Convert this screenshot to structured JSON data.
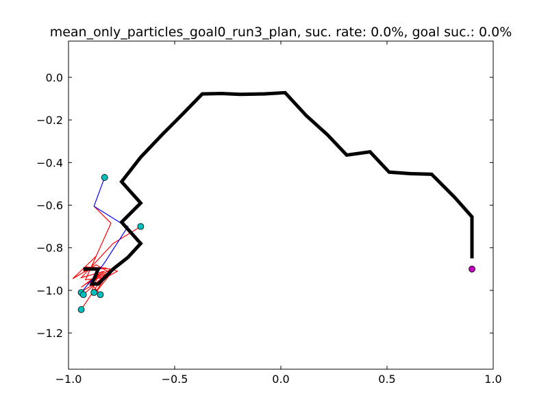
{
  "chart_data": {
    "type": "line",
    "title": "mean_only_particles_goal0_run3_plan, suc. rate: 0.0%, goal suc.: 0.0%",
    "xlabel": "",
    "ylabel": "",
    "xlim": [
      -1.0,
      1.0
    ],
    "ylim": [
      -1.37,
      0.17
    ],
    "xticks": [
      -1.0,
      -0.5,
      0.0,
      0.5,
      1.0
    ],
    "xtick_labels": [
      "−1.0",
      "−0.5",
      "0.0",
      "0.5",
      "1.0"
    ],
    "yticks": [
      0.0,
      -0.2,
      -0.4,
      -0.6,
      -0.8,
      -1.0,
      -1.2
    ],
    "ytick_labels": [
      "0.0",
      "−0.2",
      "−0.4",
      "−0.6",
      "−0.8",
      "−1.0",
      "−1.2"
    ],
    "grid": false,
    "colors": {
      "plan": "#000000",
      "mean": "#0000ff",
      "particles": "#ff0000",
      "marker": "#00bfbf",
      "goal": "#bf00bf"
    },
    "series": [
      {
        "role": "plan",
        "style": "thick-line",
        "points": [
          [
            0.9,
            -0.85
          ],
          [
            0.9,
            -0.655
          ],
          [
            0.82,
            -0.565
          ],
          [
            0.71,
            -0.455
          ],
          [
            0.61,
            -0.452
          ],
          [
            0.51,
            -0.445
          ],
          [
            0.42,
            -0.35
          ],
          [
            0.31,
            -0.365
          ],
          [
            0.22,
            -0.27
          ],
          [
            0.12,
            -0.18
          ],
          [
            0.02,
            -0.072
          ],
          [
            -0.08,
            -0.078
          ],
          [
            -0.19,
            -0.08
          ],
          [
            -0.28,
            -0.076
          ],
          [
            -0.37,
            -0.078
          ],
          [
            -0.46,
            -0.17
          ],
          [
            -0.56,
            -0.27
          ],
          [
            -0.66,
            -0.375
          ],
          [
            -0.75,
            -0.49
          ],
          [
            -0.66,
            -0.59
          ],
          [
            -0.75,
            -0.68
          ],
          [
            -0.66,
            -0.78
          ],
          [
            -0.72,
            -0.845
          ],
          [
            -0.79,
            -0.9
          ],
          [
            -0.86,
            -0.97
          ],
          [
            -0.89,
            -0.97
          ],
          [
            -0.86,
            -0.9
          ],
          [
            -0.93,
            -0.9
          ]
        ]
      },
      {
        "role": "mean",
        "style": "thin-line",
        "points": [
          [
            -0.83,
            -0.47
          ],
          [
            -0.88,
            -0.605
          ],
          [
            -0.76,
            -0.68
          ],
          [
            -0.72,
            -0.7
          ],
          [
            -0.83,
            -0.87
          ],
          [
            -0.89,
            -0.95
          ],
          [
            -0.94,
            -1.01
          ]
        ]
      },
      {
        "role": "particle",
        "style": "thin-line",
        "points": [
          [
            -0.66,
            -0.7
          ],
          [
            -0.79,
            -0.78
          ],
          [
            -0.94,
            -0.94
          ],
          [
            -0.83,
            -0.91
          ],
          [
            -0.91,
            -0.97
          ],
          [
            -0.82,
            -0.92
          ],
          [
            -0.93,
            -1.02
          ]
        ]
      },
      {
        "role": "particle",
        "style": "thin-line",
        "points": [
          [
            -0.88,
            -0.605
          ],
          [
            -0.8,
            -0.685
          ],
          [
            -0.92,
            -0.95
          ],
          [
            -0.84,
            -0.94
          ],
          [
            -0.94,
            -1.09
          ]
        ]
      },
      {
        "role": "particle",
        "style": "thin-line",
        "points": [
          [
            -0.87,
            -0.84
          ],
          [
            -0.98,
            -0.945
          ],
          [
            -0.87,
            -0.88
          ],
          [
            -0.8,
            -0.92
          ],
          [
            -0.88,
            -1.02
          ],
          [
            -0.8,
            -0.9
          ],
          [
            -0.9,
            -0.96
          ],
          [
            -0.85,
            -1.02
          ]
        ]
      },
      {
        "role": "particle",
        "style": "thin-line",
        "points": [
          [
            -0.93,
            -0.91
          ],
          [
            -0.82,
            -0.895
          ],
          [
            -0.92,
            -0.89
          ],
          [
            -0.8,
            -0.9
          ],
          [
            -0.77,
            -0.91
          ],
          [
            -0.86,
            -0.96
          ],
          [
            -0.93,
            -1.0
          ]
        ]
      },
      {
        "role": "particle",
        "style": "thin-line",
        "points": [
          [
            -0.84,
            -0.91
          ],
          [
            -0.94,
            -0.985
          ],
          [
            -0.86,
            -0.93
          ],
          [
            -0.89,
            -1.0
          ]
        ]
      }
    ],
    "markers": [
      {
        "role": "start",
        "x": -0.83,
        "y": -0.47
      },
      {
        "role": "start",
        "x": -0.66,
        "y": -0.7
      },
      {
        "role": "end",
        "x": -0.94,
        "y": -1.01
      },
      {
        "role": "end",
        "x": -0.93,
        "y": -1.02
      },
      {
        "role": "end",
        "x": -0.85,
        "y": -1.02
      },
      {
        "role": "end",
        "x": -0.88,
        "y": -1.01
      },
      {
        "role": "end",
        "x": -0.94,
        "y": -1.09
      }
    ],
    "goal": {
      "x": 0.9,
      "y": -0.9
    }
  }
}
